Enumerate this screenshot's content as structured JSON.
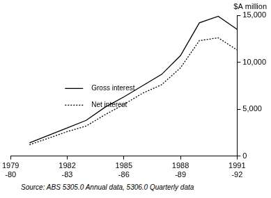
{
  "chart_data": {
    "type": "line",
    "y_label": "$A million",
    "source": "Source: ABS 5305.0 Annual data, 5306.0 Quarterly data",
    "categories": [
      "1979-80",
      null,
      null,
      "1982-83",
      null,
      null,
      "1985-86",
      null,
      null,
      "1988-89",
      null,
      null,
      "1991-92"
    ],
    "series": [
      {
        "name": "Gross interest",
        "color": "#000000",
        "line_style": "solid",
        "values": [
          null,
          1400,
          2200,
          3000,
          3800,
          5200,
          6300,
          7500,
          8700,
          10700,
          14200,
          14900,
          13500
        ]
      },
      {
        "name": "Net interest",
        "color": "#000000",
        "line_style": "dotted",
        "values": [
          null,
          1200,
          1900,
          2600,
          3200,
          4400,
          5500,
          6700,
          7600,
          9400,
          12300,
          12600,
          11300
        ]
      }
    ],
    "ylim": [
      0,
      15000
    ],
    "yticks": [
      {
        "value": 0,
        "label": "0"
      },
      {
        "value": 5000,
        "label": "5,000"
      },
      {
        "value": 10000,
        "label": "10,000"
      },
      {
        "value": 15000,
        "label": "15,000"
      }
    ],
    "grid": false,
    "legend": "center"
  }
}
